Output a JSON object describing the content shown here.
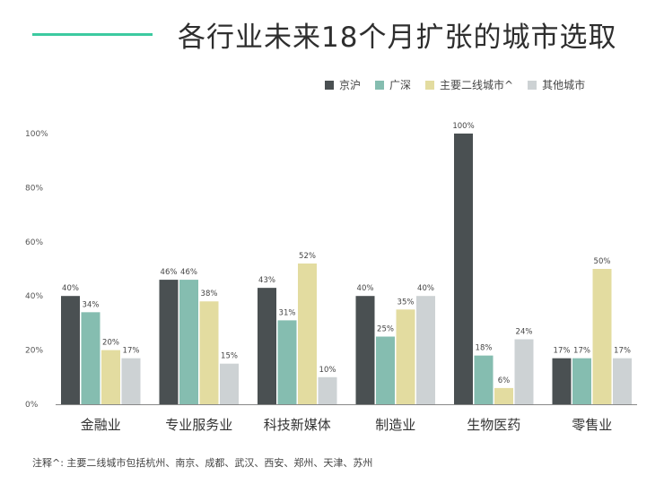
{
  "title": "各行业未来18个月扩张的城市选取",
  "legend": [
    "京沪",
    "广深",
    "主要二线城市^",
    "其他城市"
  ],
  "colors": {
    "accent": "#3ccaa0",
    "series": [
      "#4a5052",
      "#85bdb0",
      "#e3dca0",
      "#cdd2d4"
    ]
  },
  "note": "注释^: 主要二线城市包括杭州、南京、成都、武汉、西安、郑州、天津、苏州",
  "chart_data": {
    "type": "bar",
    "categories": [
      "金融业",
      "专业服务业",
      "科技新媒体",
      "制造业",
      "生物医药",
      "零售业"
    ],
    "series": [
      {
        "name": "京沪",
        "values": [
          40,
          46,
          43,
          40,
          100,
          17
        ]
      },
      {
        "name": "广深",
        "values": [
          34,
          46,
          31,
          25,
          18,
          17
        ]
      },
      {
        "name": "主要二线城市^",
        "values": [
          20,
          38,
          52,
          35,
          6,
          50
        ]
      },
      {
        "name": "其他城市",
        "values": [
          17,
          15,
          10,
          40,
          24,
          17
        ]
      }
    ],
    "y_ticks": [
      "0%",
      "20%",
      "40%",
      "60%",
      "80%",
      "100%"
    ],
    "ylim": [
      0,
      100
    ],
    "unit": "%",
    "legend_position": "top-right",
    "grid": false
  }
}
